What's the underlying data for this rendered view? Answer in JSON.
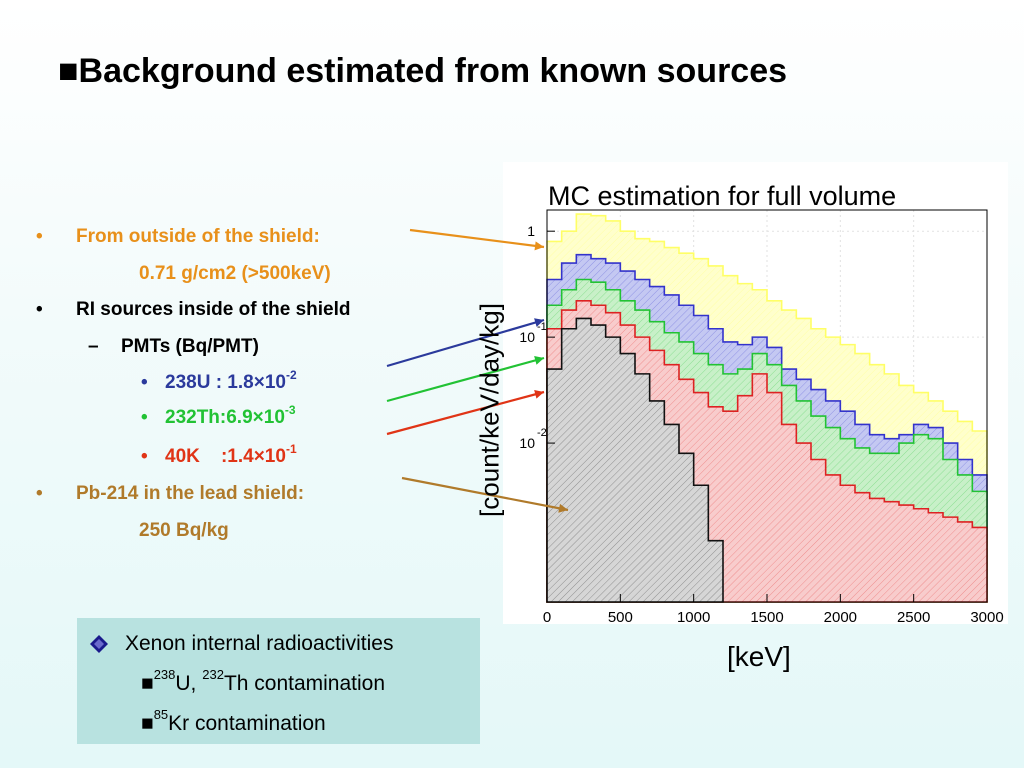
{
  "title": "■Background estimated from known sources",
  "bullets": {
    "outside_label": "From outside of the shield:",
    "outside_value": "0.71 g/cm2  (>500keV)",
    "ri_label": "RI sources inside of the shield",
    "pmts_label": "PMTs (Bq/PMT)",
    "u238_text": "238U : 1.8×10",
    "u238_exp": "-2",
    "th232_text": "232Th:6.9×10",
    "th232_exp": "-3",
    "k40_text": "40K    :1.4×10",
    "k40_exp": "-1",
    "pb_label": "Pb-214 in the lead shield:",
    "pb_value": "250 Bq/kg",
    "bullet_char": "•",
    "dash_char": "–"
  },
  "colors": {
    "orange": "#e8901a",
    "brown": "#b07a2a",
    "blue": "#2b3a9c",
    "green": "#22c234",
    "red": "#e03416",
    "box_bg": "#b8e2e0"
  },
  "xenon_box": {
    "line1": "Xenon internal radioactivities",
    "line2_mark": "■",
    "line2_sup1": "238",
    "line2_mid": "U, ",
    "line2_sup2": "232",
    "line2_end": "Th contamination",
    "line3_mark": "■",
    "line3_sup": "85",
    "line3_end": "Kr contamination",
    "icon": "diamond-bullet-icon"
  },
  "chart_data": {
    "type": "area",
    "title": "MC estimation for full volume",
    "xlabel": "[keV]",
    "ylabel": "[count/keV/day/kg]",
    "xlim": [
      0,
      3000
    ],
    "ylim_log10": [
      -3.5,
      0.2
    ],
    "y_scale": "log",
    "xticks": [
      0,
      500,
      1000,
      1500,
      2000,
      2500,
      3000
    ],
    "ytick_labels": [
      {
        "base": "1",
        "exp": ""
      },
      {
        "base": "10",
        "exp": "-1"
      },
      {
        "base": "10",
        "exp": "-2"
      }
    ],
    "ytick_values": [
      1,
      0.1,
      0.01
    ],
    "grid": true,
    "series": [
      {
        "color": "#ffff66",
        "fill": "#ffffcc",
        "points": [
          [
            0,
            0.8
          ],
          [
            100,
            1.0
          ],
          [
            200,
            1.45
          ],
          [
            300,
            1.4
          ],
          [
            400,
            1.25
          ],
          [
            500,
            1.0
          ],
          [
            600,
            0.85
          ],
          [
            700,
            0.8
          ],
          [
            800,
            0.7
          ],
          [
            900,
            0.62
          ],
          [
            1000,
            0.55
          ],
          [
            1100,
            0.47
          ],
          [
            1200,
            0.38
          ],
          [
            1300,
            0.32
          ],
          [
            1400,
            0.28
          ],
          [
            1500,
            0.22
          ],
          [
            1600,
            0.18
          ],
          [
            1700,
            0.15
          ],
          [
            1800,
            0.12
          ],
          [
            1900,
            0.1
          ],
          [
            2000,
            0.085
          ],
          [
            2100,
            0.07
          ],
          [
            2200,
            0.055
          ],
          [
            2300,
            0.045
          ],
          [
            2400,
            0.035
          ],
          [
            2500,
            0.03
          ],
          [
            2600,
            0.025
          ],
          [
            2700,
            0.02
          ],
          [
            2800,
            0.016
          ],
          [
            2900,
            0.013
          ],
          [
            3000,
            0.011
          ]
        ]
      },
      {
        "color": "#3333cc",
        "fill": "#c4c8f2",
        "points": [
          [
            0,
            0.35
          ],
          [
            100,
            0.5
          ],
          [
            200,
            0.6
          ],
          [
            300,
            0.55
          ],
          [
            400,
            0.5
          ],
          [
            500,
            0.42
          ],
          [
            600,
            0.35
          ],
          [
            700,
            0.3
          ],
          [
            800,
            0.25
          ],
          [
            900,
            0.2
          ],
          [
            1000,
            0.16
          ],
          [
            1100,
            0.12
          ],
          [
            1200,
            0.09
          ],
          [
            1300,
            0.085
          ],
          [
            1400,
            0.1
          ],
          [
            1500,
            0.08
          ],
          [
            1600,
            0.05
          ],
          [
            1700,
            0.04
          ],
          [
            1800,
            0.032
          ],
          [
            1900,
            0.025
          ],
          [
            2000,
            0.02
          ],
          [
            2100,
            0.015
          ],
          [
            2200,
            0.012
          ],
          [
            2300,
            0.011
          ],
          [
            2400,
            0.012
          ],
          [
            2500,
            0.015
          ],
          [
            2600,
            0.014
          ],
          [
            2700,
            0.01
          ],
          [
            2800,
            0.007
          ],
          [
            2900,
            0.005
          ],
          [
            3000,
            0.004
          ]
        ]
      },
      {
        "color": "#22c234",
        "fill": "#c8f0c8",
        "points": [
          [
            0,
            0.2
          ],
          [
            100,
            0.28
          ],
          [
            200,
            0.35
          ],
          [
            300,
            0.33
          ],
          [
            400,
            0.28
          ],
          [
            500,
            0.22
          ],
          [
            600,
            0.18
          ],
          [
            700,
            0.14
          ],
          [
            800,
            0.11
          ],
          [
            900,
            0.09
          ],
          [
            1000,
            0.07
          ],
          [
            1100,
            0.055
          ],
          [
            1200,
            0.045
          ],
          [
            1300,
            0.05
          ],
          [
            1400,
            0.07
          ],
          [
            1500,
            0.055
          ],
          [
            1600,
            0.035
          ],
          [
            1700,
            0.025
          ],
          [
            1800,
            0.018
          ],
          [
            1900,
            0.014
          ],
          [
            2000,
            0.011
          ],
          [
            2100,
            0.009
          ],
          [
            2200,
            0.008
          ],
          [
            2300,
            0.008
          ],
          [
            2400,
            0.01
          ],
          [
            2500,
            0.012
          ],
          [
            2600,
            0.011
          ],
          [
            2700,
            0.007
          ],
          [
            2800,
            0.005
          ],
          [
            2900,
            0.0035
          ],
          [
            3000,
            0.0028
          ]
        ]
      },
      {
        "color": "#dd2222",
        "fill": "#f8cccc",
        "points": [
          [
            0,
            0.12
          ],
          [
            100,
            0.18
          ],
          [
            200,
            0.22
          ],
          [
            300,
            0.2
          ],
          [
            400,
            0.17
          ],
          [
            500,
            0.13
          ],
          [
            600,
            0.1
          ],
          [
            700,
            0.075
          ],
          [
            800,
            0.055
          ],
          [
            900,
            0.04
          ],
          [
            1000,
            0.03
          ],
          [
            1100,
            0.022
          ],
          [
            1200,
            0.02
          ],
          [
            1300,
            0.028
          ],
          [
            1400,
            0.045
          ],
          [
            1500,
            0.03
          ],
          [
            1600,
            0.015
          ],
          [
            1700,
            0.01
          ],
          [
            1800,
            0.007
          ],
          [
            1900,
            0.005
          ],
          [
            2000,
            0.004
          ],
          [
            2100,
            0.0034
          ],
          [
            2200,
            0.003
          ],
          [
            2300,
            0.0028
          ],
          [
            2400,
            0.0026
          ],
          [
            2500,
            0.0024
          ],
          [
            2600,
            0.0022
          ],
          [
            2700,
            0.002
          ],
          [
            2800,
            0.0018
          ],
          [
            2900,
            0.0016
          ],
          [
            3000,
            0.0015
          ]
        ]
      },
      {
        "color": "#111111",
        "fill": "#d6d6d6",
        "points": [
          [
            0,
            0.05
          ],
          [
            100,
            0.12
          ],
          [
            200,
            0.15
          ],
          [
            300,
            0.13
          ],
          [
            400,
            0.1
          ],
          [
            500,
            0.07
          ],
          [
            600,
            0.045
          ],
          [
            700,
            0.025
          ],
          [
            800,
            0.015
          ],
          [
            900,
            0.008
          ],
          [
            1000,
            0.004
          ],
          [
            1100,
            0.0012
          ],
          [
            1200,
            0.0004
          ]
        ]
      }
    ]
  }
}
